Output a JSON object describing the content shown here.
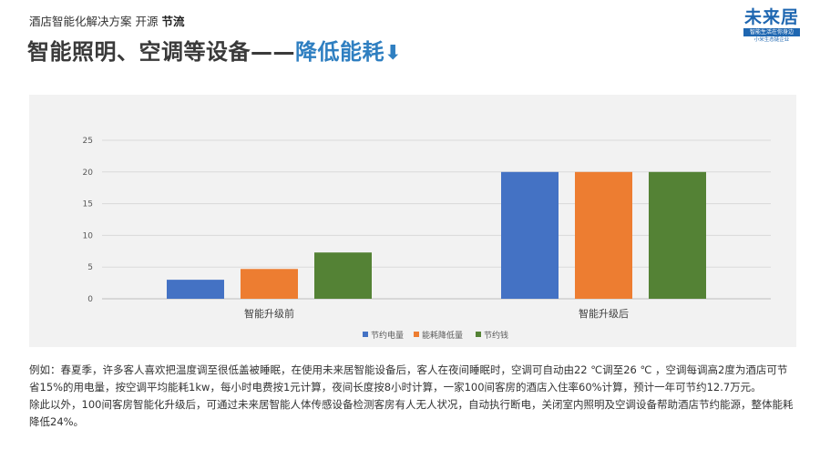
{
  "header": {
    "tag_prefix": "酒店智能化解决方案 开源 ",
    "tag_bold": "节流",
    "title_main": "智能照明、空调等设备——",
    "title_accent": "降低能耗",
    "title_arrow": "⬇"
  },
  "logo": {
    "name": "未来居",
    "slogan": "智能生活在你身边",
    "sub": "小米生态链企业"
  },
  "chart_data": {
    "type": "bar",
    "categories": [
      "智能升级前",
      "智能升级后"
    ],
    "series": [
      {
        "name": "节约电量",
        "color": "#4472c4",
        "values": [
          3,
          20
        ]
      },
      {
        "name": "能耗降低量",
        "color": "#ed7d31",
        "values": [
          4.7,
          20
        ]
      },
      {
        "name": "节约钱",
        "color": "#548235",
        "values": [
          7.3,
          20
        ]
      }
    ],
    "ylim": [
      0,
      25
    ],
    "yticks": [
      0,
      5,
      10,
      15,
      20,
      25
    ],
    "grid": true,
    "legend": "bottom"
  },
  "description": [
    "例如：春夏季，许多客人喜欢把温度调至很低盖被睡眠，在使用未来居智能设备后，客人在夜间睡眠时，空调可自动由22 ℃调至26 ℃ ，空调每调高2度为酒店可节省15%的用电量，按空调平均能耗1kw，每小时电费按1元计算，夜间长度按8小时计算，一家100间客房的酒店入住率60%计算，预计一年可节约12.7万元。",
    "除此以外，100间客房智能化升级后，可通过未来居智能人体传感设备检测客房有人无人状况，自动执行断电，关闭室内照明及空调设备帮助酒店节约能源，整体能耗降低24%。"
  ]
}
